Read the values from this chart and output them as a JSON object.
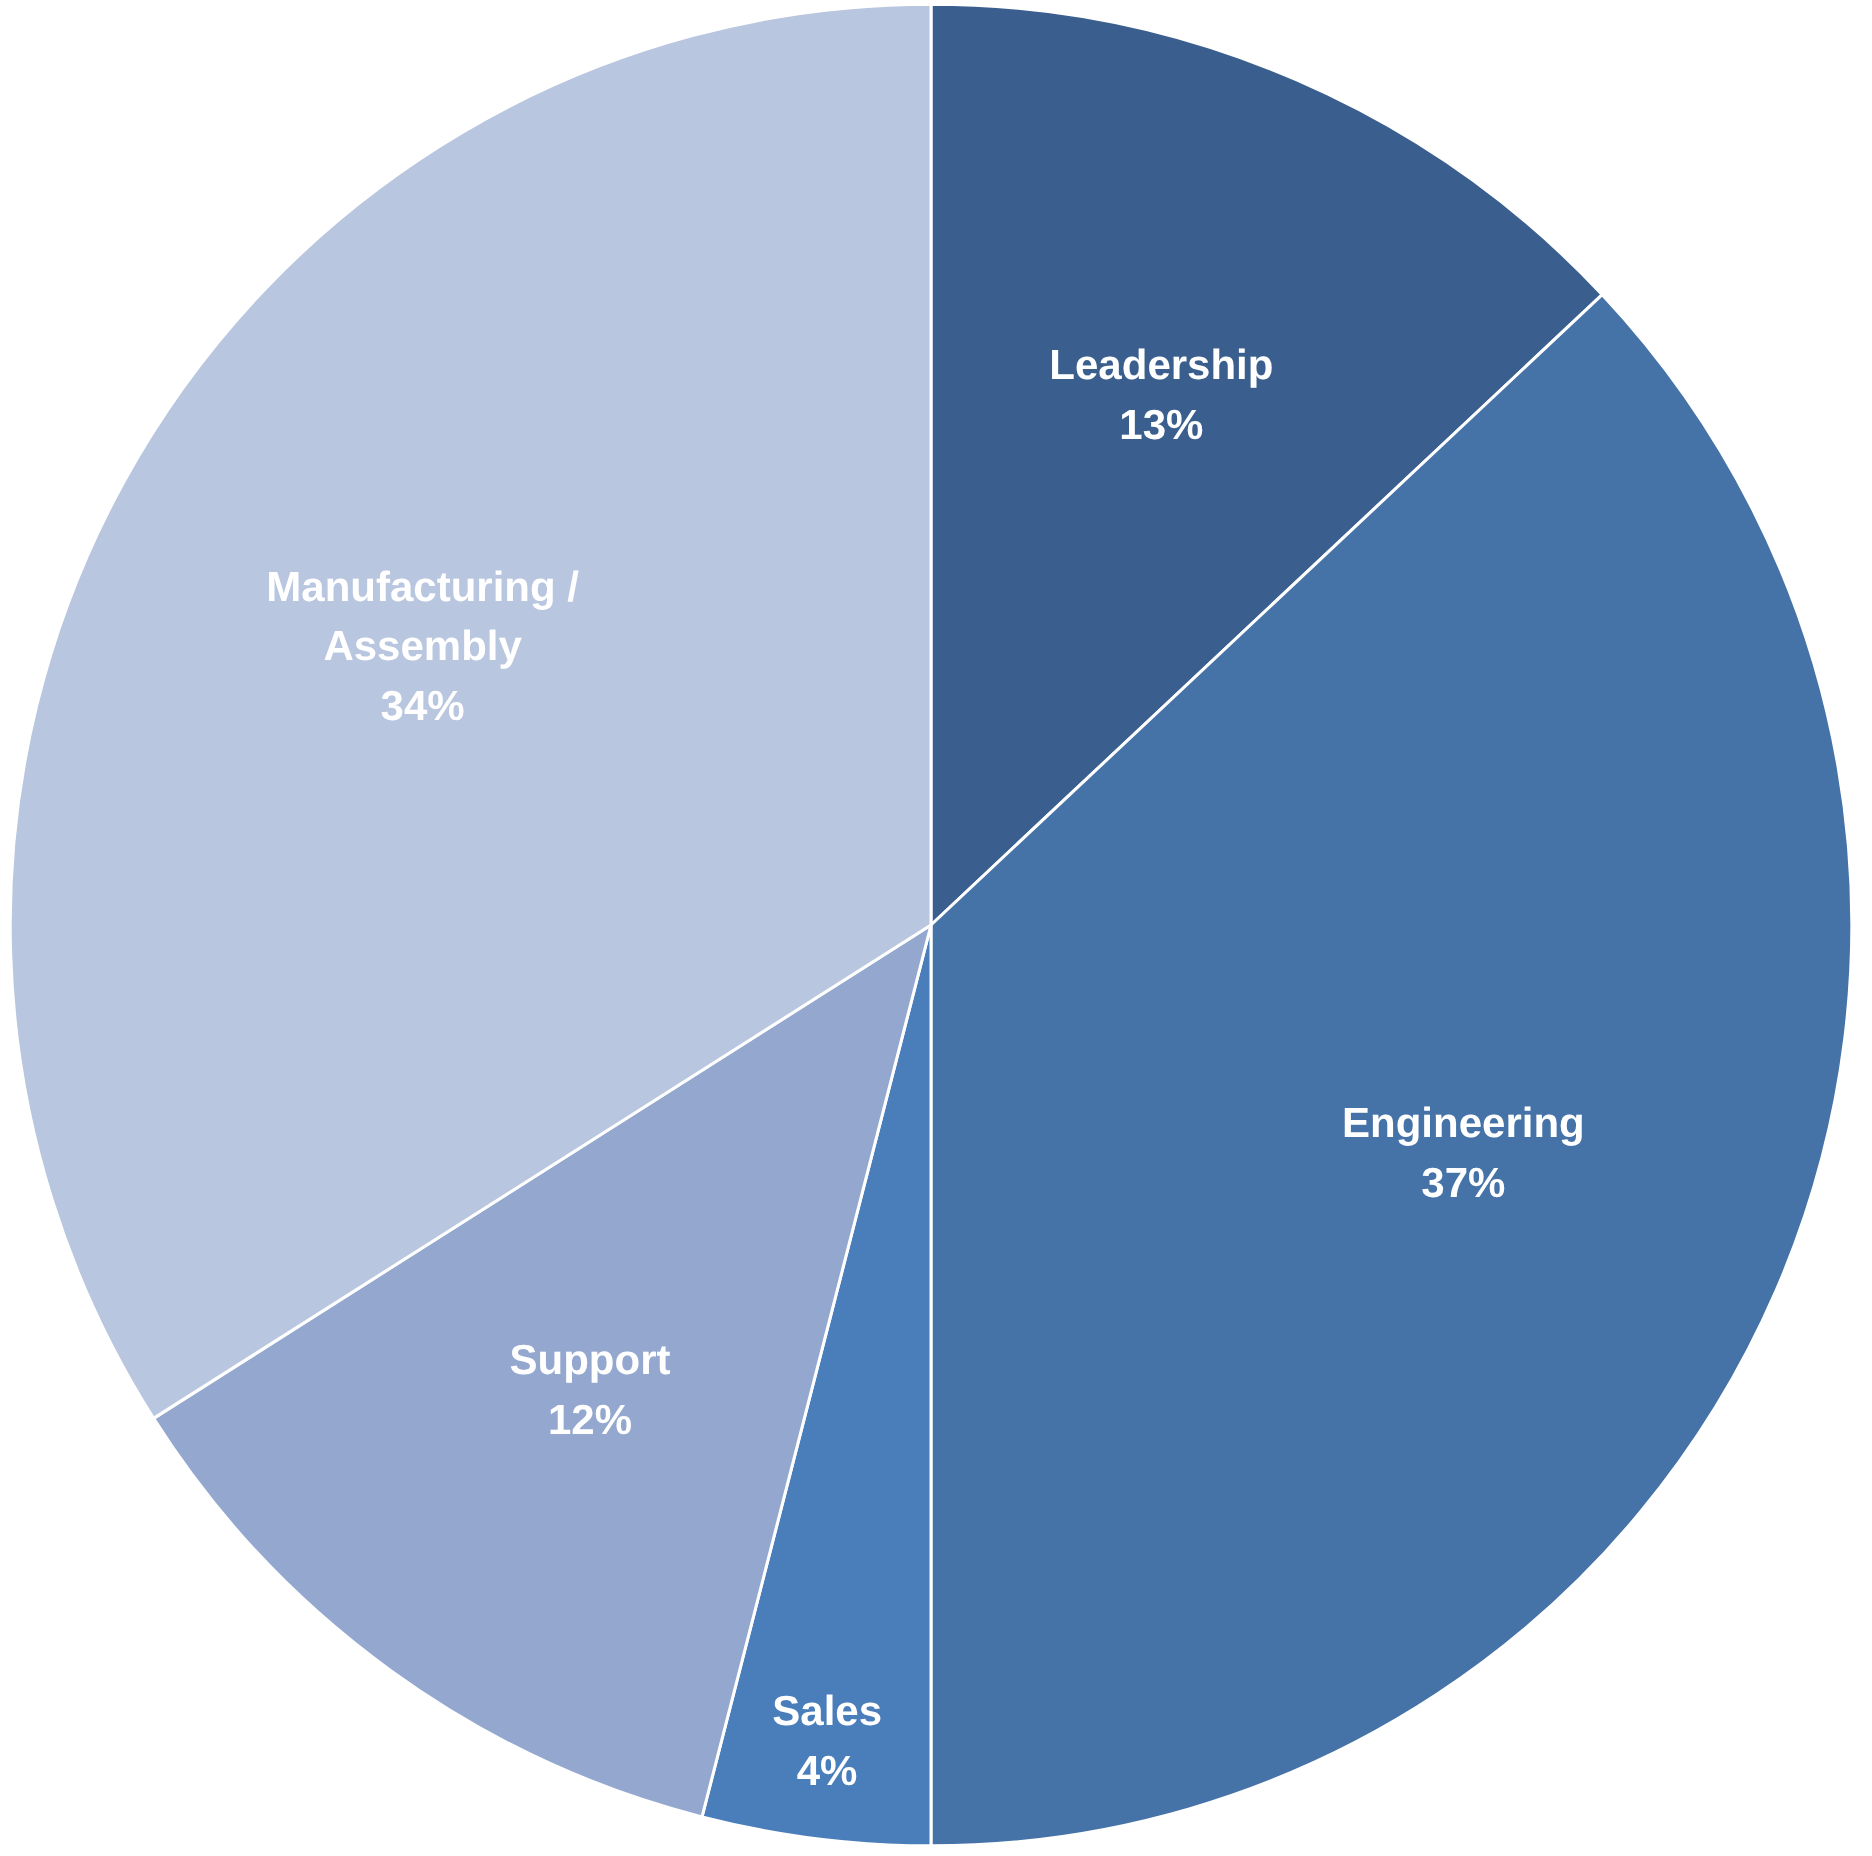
{
  "chart_data": {
    "type": "pie",
    "categories": [
      "Leadership",
      "Engineering",
      "Sales",
      "Support",
      "Manufacturing / Assembly"
    ],
    "values": [
      13,
      37,
      4,
      12,
      34
    ],
    "colors": [
      "#3a5f8e",
      "#4572a7",
      "#4a7ebb",
      "#94a8cf",
      "#b9c6df"
    ],
    "value_labels": [
      "13%",
      "37%",
      "4%",
      "12%",
      "34%"
    ],
    "legend": false
  }
}
